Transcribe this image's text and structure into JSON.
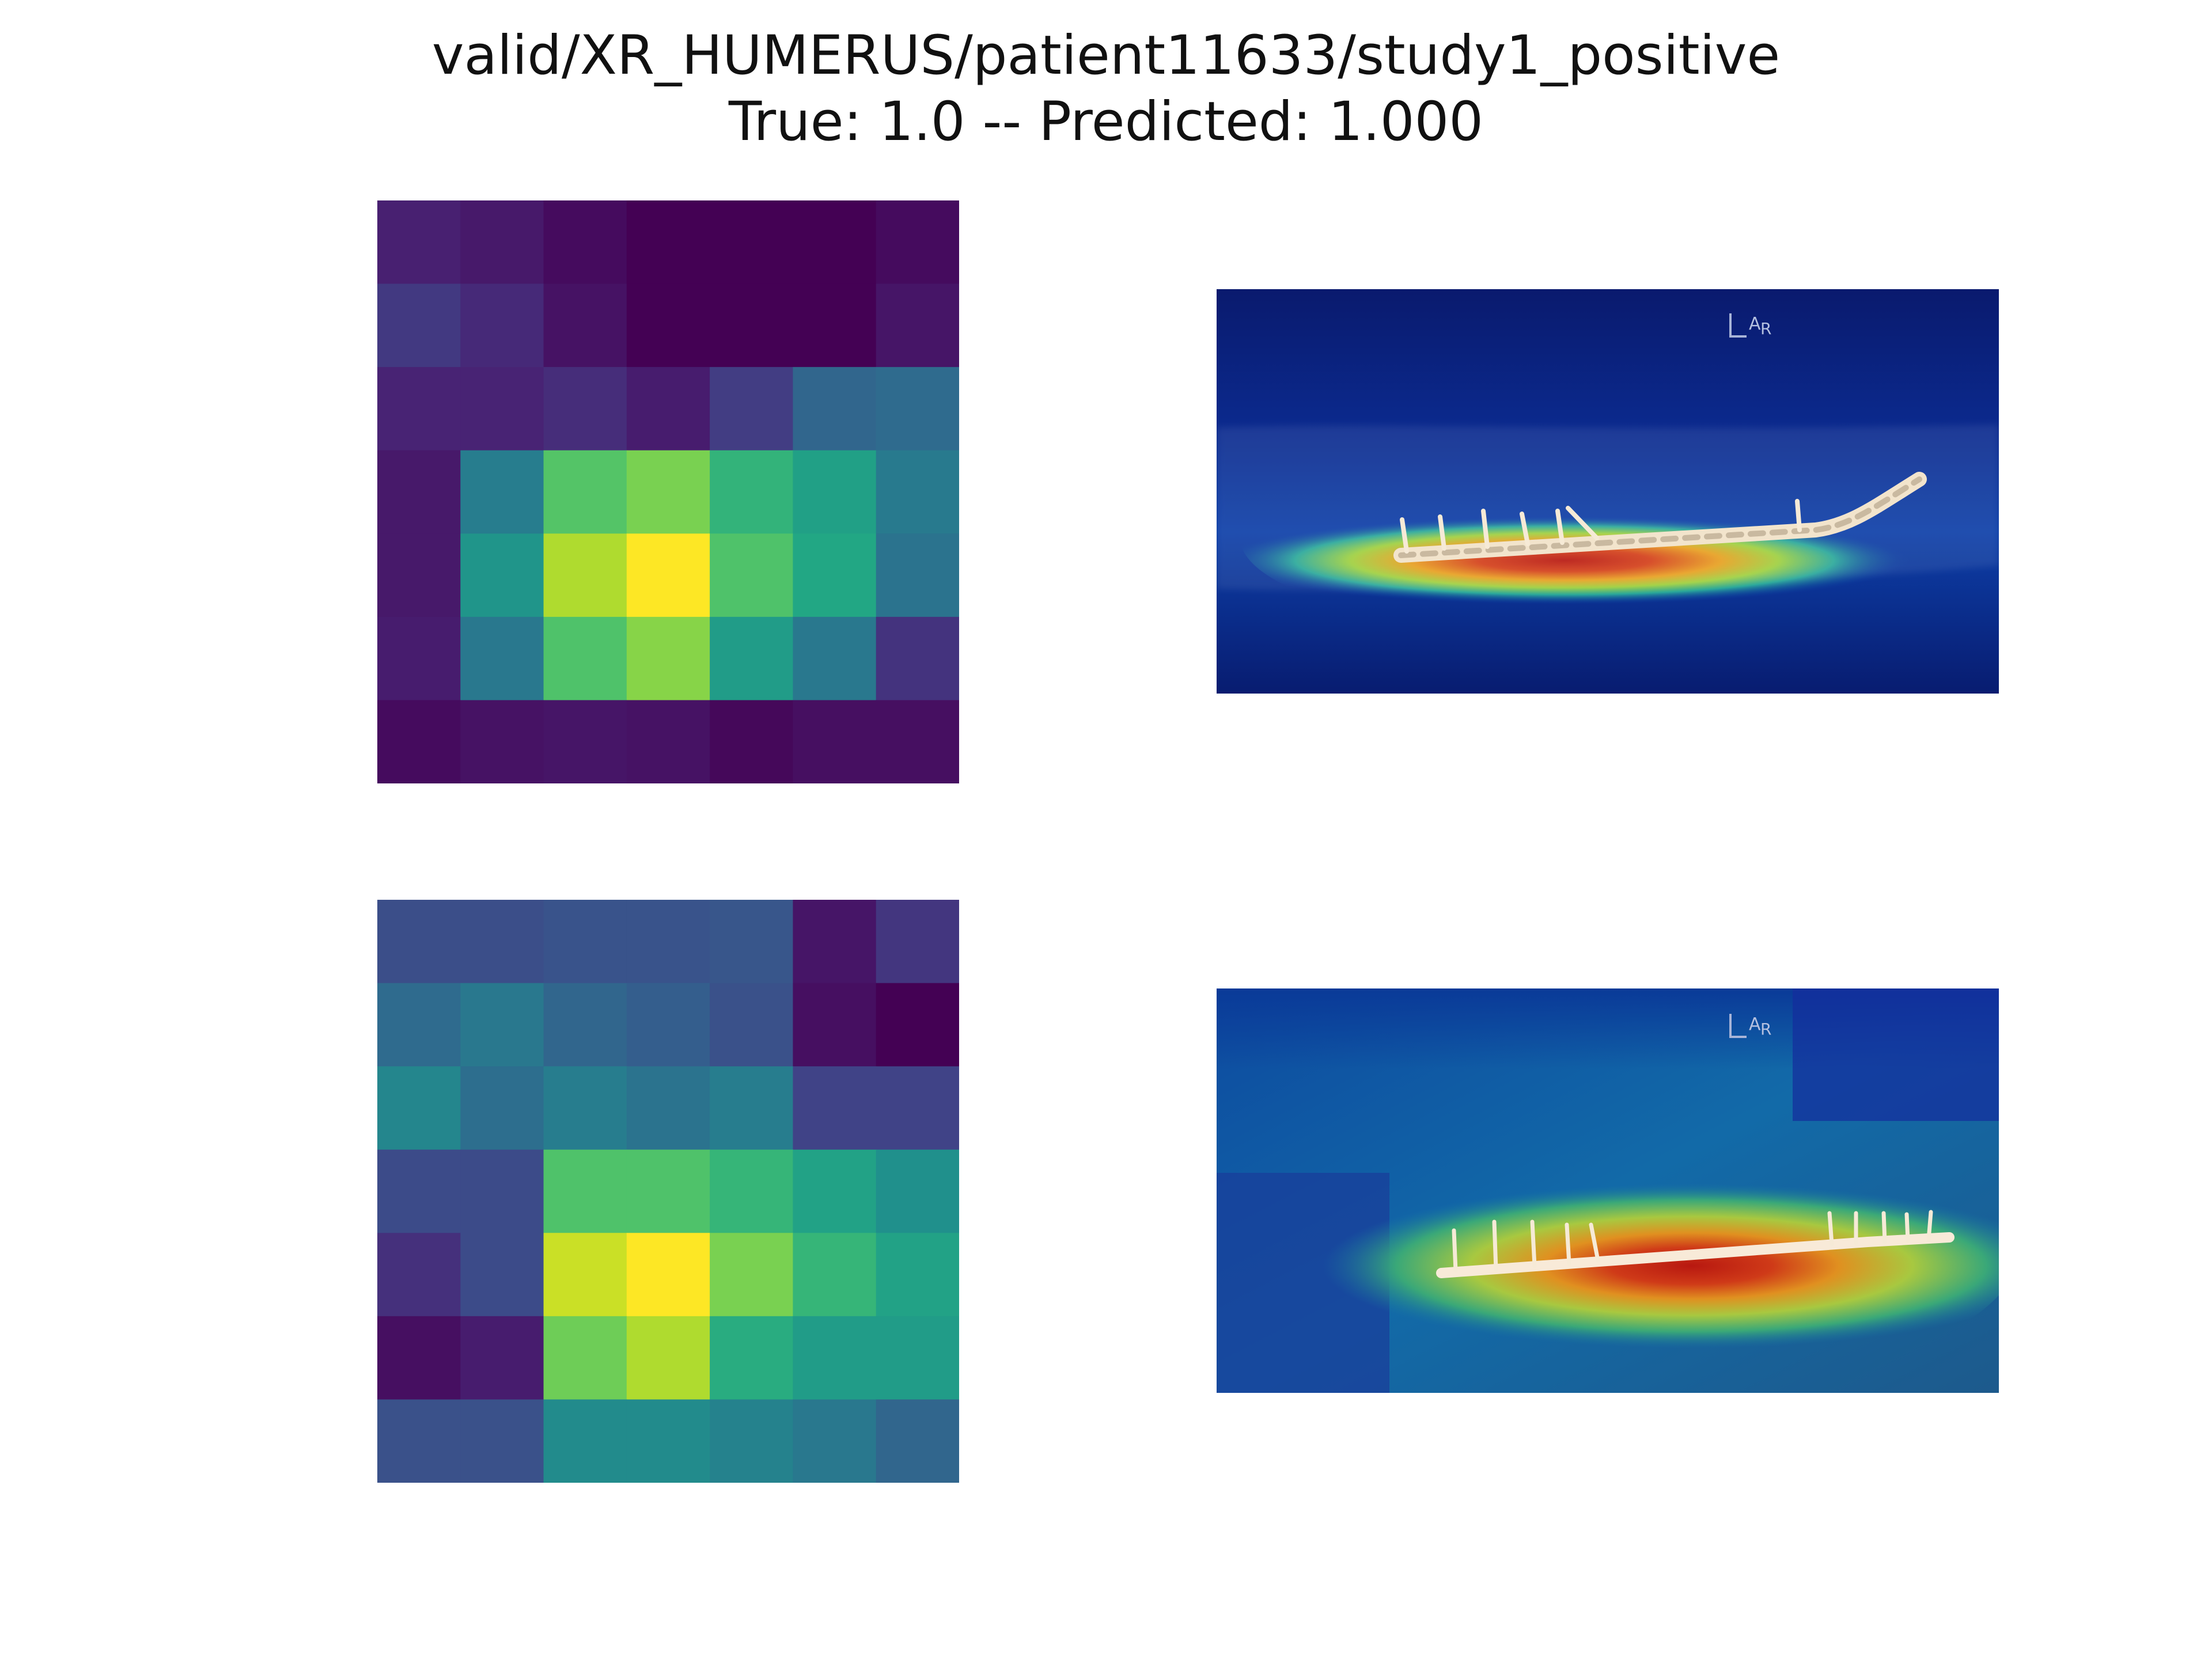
{
  "title": {
    "line1": "valid/XR_HUMERUS/patient11633/study1_positive",
    "line2": "True: 1.0 -- Predicted: 1.000"
  },
  "chart_data": [
    {
      "type": "heatmap",
      "colormap": "viridis",
      "rows": 7,
      "cols": 7,
      "values": [
        [
          0.09,
          0.07,
          0.03,
          0.0,
          0.0,
          0.0,
          0.03
        ],
        [
          0.17,
          0.12,
          0.05,
          0.0,
          0.0,
          0.0,
          0.06
        ],
        [
          0.1,
          0.1,
          0.13,
          0.08,
          0.18,
          0.33,
          0.35
        ],
        [
          0.07,
          0.42,
          0.73,
          0.8,
          0.65,
          0.57,
          0.41
        ],
        [
          0.07,
          0.52,
          0.88,
          1.0,
          0.72,
          0.6,
          0.38
        ],
        [
          0.08,
          0.4,
          0.72,
          0.82,
          0.55,
          0.4,
          0.15
        ],
        [
          0.03,
          0.05,
          0.06,
          0.05,
          0.02,
          0.04,
          0.04
        ]
      ],
      "xticks": [],
      "yticks": []
    },
    {
      "type": "heatmap",
      "colormap": "viridis",
      "rows": 7,
      "cols": 7,
      "values": [
        [
          0.24,
          0.24,
          0.26,
          0.26,
          0.27,
          0.06,
          0.16
        ],
        [
          0.35,
          0.4,
          0.33,
          0.3,
          0.25,
          0.04,
          0.0
        ],
        [
          0.46,
          0.36,
          0.42,
          0.38,
          0.42,
          0.2,
          0.2
        ],
        [
          0.23,
          0.23,
          0.72,
          0.72,
          0.66,
          0.58,
          0.5
        ],
        [
          0.14,
          0.23,
          0.92,
          1.0,
          0.8,
          0.66,
          0.58
        ],
        [
          0.04,
          0.08,
          0.78,
          0.88,
          0.62,
          0.55,
          0.55
        ],
        [
          0.25,
          0.25,
          0.48,
          0.48,
          0.44,
          0.4,
          0.33
        ]
      ],
      "xticks": [],
      "yticks": []
    }
  ],
  "overlays": [
    {
      "name": "xray-cam-overlay-1",
      "marker_text": "L",
      "marker_sup": "A",
      "marker_sub": "R"
    },
    {
      "name": "xray-cam-overlay-2",
      "marker_text": "L",
      "marker_sup": "A",
      "marker_sub": "R"
    }
  ]
}
